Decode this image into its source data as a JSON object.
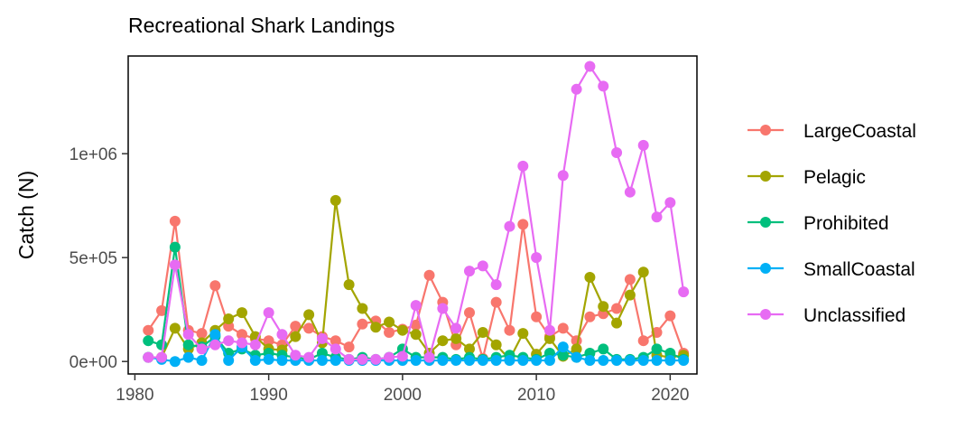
{
  "chart_data": {
    "type": "line",
    "title": "Recreational Shark Landings",
    "xlabel": "",
    "ylabel": "Catch (N)",
    "xlim": [
      1979.5,
      2022.0
    ],
    "ylim": [
      -60000,
      1470000
    ],
    "x_ticks": [
      1980,
      1990,
      2000,
      2010,
      2020
    ],
    "x_tick_labels": [
      "1980",
      "1990",
      "2000",
      "2010",
      "2020"
    ],
    "y_ticks": [
      0,
      500000,
      1000000
    ],
    "y_tick_labels": [
      "0e+00",
      "5e+05",
      "1e+06"
    ],
    "grid": false,
    "legend_position": "right",
    "x": [
      1981,
      1982,
      1983,
      1984,
      1985,
      1986,
      1987,
      1988,
      1989,
      1990,
      1991,
      1992,
      1993,
      1994,
      1995,
      1996,
      1997,
      1998,
      1999,
      2000,
      2001,
      2002,
      2003,
      2004,
      2005,
      2006,
      2007,
      2008,
      2009,
      2010,
      2011,
      2012,
      2013,
      2014,
      2015,
      2016,
      2017,
      2018,
      2019,
      2020,
      2021
    ],
    "series": [
      {
        "name": "LargeCoastal",
        "color": "#F8766D",
        "values": [
          150000,
          245000,
          675000,
          150000,
          135000,
          365000,
          170000,
          130000,
          110000,
          100000,
          80000,
          170000,
          160000,
          120000,
          100000,
          70000,
          180000,
          195000,
          140000,
          155000,
          175000,
          415000,
          285000,
          80000,
          235000,
          15000,
          285000,
          150000,
          660000,
          215000,
          120000,
          160000,
          100000,
          215000,
          230000,
          255000,
          395000,
          100000,
          140000,
          220000,
          40000
        ]
      },
      {
        "name": "Pelagic",
        "color": "#A3A500",
        "values": [
          20000,
          20000,
          160000,
          60000,
          90000,
          150000,
          205000,
          235000,
          120000,
          60000,
          55000,
          120000,
          225000,
          90000,
          775000,
          370000,
          255000,
          165000,
          190000,
          150000,
          130000,
          40000,
          100000,
          110000,
          60000,
          140000,
          80000,
          10000,
          135000,
          35000,
          110000,
          25000,
          60000,
          405000,
          265000,
          185000,
          320000,
          430000,
          30000,
          20000,
          30000
        ]
      },
      {
        "name": "Prohibited",
        "color": "#00BF7D",
        "values": [
          100000,
          80000,
          550000,
          80000,
          70000,
          120000,
          40000,
          60000,
          30000,
          40000,
          30000,
          20000,
          10000,
          40000,
          20000,
          10000,
          20000,
          10000,
          20000,
          60000,
          20000,
          20000,
          20000,
          10000,
          20000,
          10000,
          20000,
          30000,
          20000,
          10000,
          40000,
          30000,
          20000,
          40000,
          60000,
          10000,
          10000,
          20000,
          60000,
          40000,
          10000
        ]
      },
      {
        "name": "SmallCoastal",
        "color": "#00B0F6",
        "values": [
          20000,
          10000,
          0,
          20000,
          5000,
          130000,
          5000,
          70000,
          5000,
          10000,
          5000,
          5000,
          5000,
          5000,
          5000,
          5000,
          5000,
          5000,
          5000,
          5000,
          5000,
          5000,
          5000,
          5000,
          5000,
          5000,
          5000,
          5000,
          5000,
          5000,
          5000,
          70000,
          20000,
          5000,
          5000,
          5000,
          5000,
          5000,
          5000,
          5000,
          5000
        ]
      },
      {
        "name": "Unclassified",
        "color": "#E76BF3",
        "values": [
          20000,
          20000,
          465000,
          130000,
          60000,
          80000,
          100000,
          90000,
          80000,
          235000,
          130000,
          30000,
          20000,
          110000,
          60000,
          10000,
          10000,
          10000,
          20000,
          25000,
          270000,
          20000,
          255000,
          160000,
          435000,
          460000,
          370000,
          650000,
          940000,
          500000,
          150000,
          895000,
          1310000,
          1420000,
          1325000,
          1005000,
          815000,
          1040000,
          695000,
          765000,
          335000
        ]
      }
    ]
  }
}
